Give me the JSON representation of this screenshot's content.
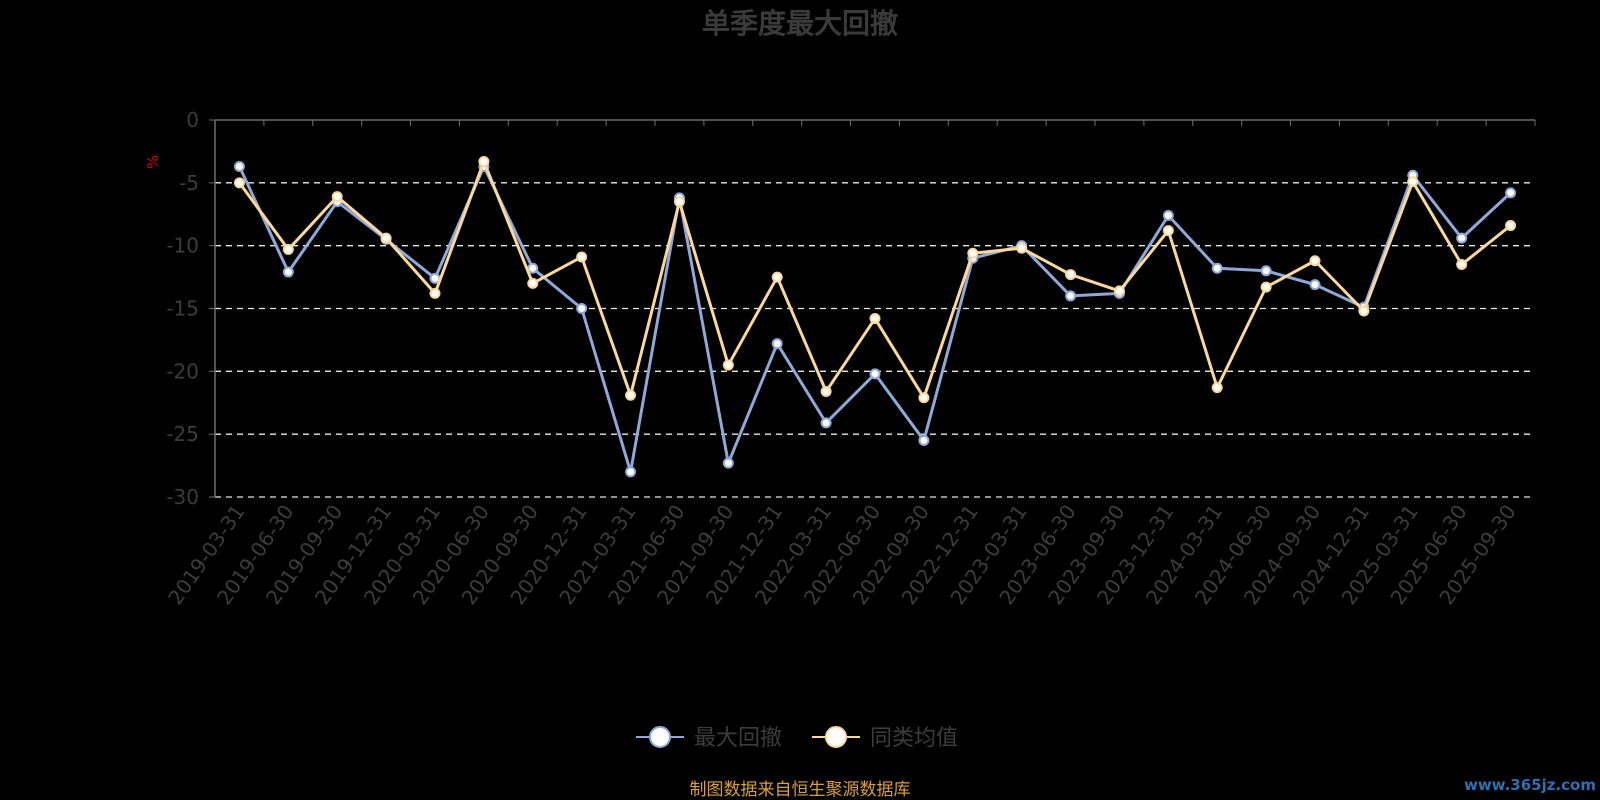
{
  "chart_data": {
    "type": "line",
    "title": "单季度最大回撤",
    "ylabel": "%",
    "xlabel": "",
    "ylim": [
      -30,
      0
    ],
    "yticks": [
      0,
      -5,
      -10,
      -15,
      -20,
      -25,
      -30
    ],
    "grid": true,
    "legend_position": "bottom",
    "categories": [
      "2019-03-31",
      "2019-06-30",
      "2019-09-30",
      "2019-12-31",
      "2020-03-31",
      "2020-06-30",
      "2020-09-30",
      "2020-12-31",
      "2021-03-31",
      "2021-06-30",
      "2021-09-30",
      "2021-12-31",
      "2022-03-31",
      "2022-06-30",
      "2022-09-30",
      "2022-12-31",
      "2023-03-31",
      "2023-06-30",
      "2023-09-30",
      "2023-12-31",
      "2024-03-31",
      "2024-06-30",
      "2024-09-30",
      "2024-12-31",
      "2025-03-31",
      "2025-06-30",
      "2025-09-30"
    ],
    "series": [
      {
        "name": "最大回撤",
        "color": "#8fa8d8",
        "values": [
          -3.7,
          -12.1,
          -6.5,
          -9.5,
          -12.6,
          -3.7,
          -11.8,
          -15.0,
          -28.0,
          -6.2,
          -27.3,
          -17.8,
          -24.1,
          -20.2,
          -25.5,
          -11.0,
          -10.0,
          -14.0,
          -13.8,
          -7.6,
          -11.8,
          -12.0,
          -13.1,
          -14.9,
          -4.4,
          -9.4,
          -5.8
        ]
      },
      {
        "name": "同类均值",
        "color": "#f9d89a",
        "values": [
          -5.0,
          -10.3,
          -6.1,
          -9.4,
          -13.8,
          -3.3,
          -13.0,
          -10.9,
          -21.9,
          -6.5,
          -19.5,
          -12.5,
          -21.6,
          -15.8,
          -22.1,
          -10.6,
          -10.2,
          -12.3,
          -13.6,
          -8.8,
          -21.3,
          -13.3,
          -11.2,
          -15.2,
          -4.9,
          -11.5,
          -8.4
        ]
      }
    ]
  },
  "footer": {
    "source_note": "制图数据来自恒生聚源数据库",
    "watermark": "www.365jz.com"
  },
  "colors": {
    "background": "#000000",
    "grid": "#e8e8e8",
    "axis": "#6e6e6e",
    "text": "#3c3c3c",
    "source": "#d9a032",
    "watermark": "#2f6fb0"
  }
}
